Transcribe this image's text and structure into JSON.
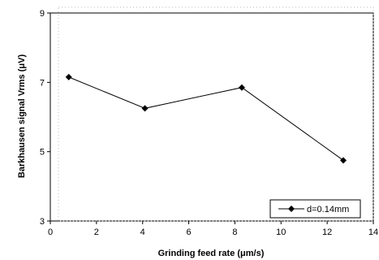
{
  "chart_data": {
    "type": "line",
    "title": "",
    "xlabel": "Grinding feed rate (μm/s)",
    "ylabel": "Barkhausen signal Vrms (μV)",
    "xlim": [
      0,
      14
    ],
    "ylim": [
      3,
      9
    ],
    "xticks": [
      "0",
      "2",
      "4",
      "6",
      "8",
      "10",
      "12",
      "14"
    ],
    "yticks": [
      "3",
      "5",
      "7",
      "9"
    ],
    "grid": false,
    "legend_position": "bottom-right",
    "series": [
      {
        "name": "d=0.14mm",
        "x": [
          0.8,
          4.1,
          8.3,
          12.7
        ],
        "y": [
          7.15,
          6.25,
          6.85,
          4.75
        ],
        "color": "#000000",
        "marker": "diamond"
      }
    ]
  }
}
